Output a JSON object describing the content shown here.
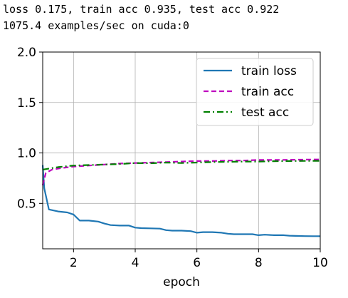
{
  "console": {
    "line1": "loss 0.175, train acc 0.935, test acc 0.922",
    "line2": "1075.4 examples/sec on cuda:0"
  },
  "chart_data": {
    "type": "line",
    "xlabel": "epoch",
    "ylabel": "",
    "xlim": [
      1,
      10
    ],
    "ylim": [
      0.05,
      2.0
    ],
    "xticks": [
      2,
      4,
      6,
      8,
      10
    ],
    "yticks": [
      0.5,
      1.0,
      1.5,
      2.0
    ],
    "xtick_labels": [
      "2",
      "4",
      "6",
      "8",
      "10"
    ],
    "ytick_labels": [
      "0.5",
      "1.0",
      "1.5",
      "2.0"
    ],
    "grid": true,
    "legend_position": "top-right",
    "series": [
      {
        "name": "train loss",
        "color": "#1f77b4",
        "style": "solid",
        "x": [
          1.0,
          1.05,
          1.2,
          1.5,
          1.8,
          2.0,
          2.2,
          2.5,
          2.8,
          3.0,
          3.2,
          3.5,
          3.8,
          4.0,
          4.2,
          4.5,
          4.8,
          5.0,
          5.2,
          5.5,
          5.8,
          6.0,
          6.2,
          6.5,
          6.8,
          7.0,
          7.2,
          7.5,
          7.8,
          8.0,
          8.2,
          8.5,
          8.8,
          9.0,
          9.2,
          9.5,
          9.8,
          10.0
        ],
        "y": [
          0.88,
          0.65,
          0.44,
          0.42,
          0.41,
          0.39,
          0.33,
          0.33,
          0.32,
          0.3,
          0.285,
          0.28,
          0.28,
          0.26,
          0.255,
          0.253,
          0.25,
          0.235,
          0.23,
          0.23,
          0.225,
          0.21,
          0.215,
          0.215,
          0.21,
          0.2,
          0.195,
          0.195,
          0.195,
          0.185,
          0.19,
          0.185,
          0.185,
          0.18,
          0.178,
          0.176,
          0.175,
          0.175
        ]
      },
      {
        "name": "train acc",
        "color": "#bf00bf",
        "style": "dashed",
        "x": [
          1.0,
          1.1,
          1.3,
          1.6,
          2.0,
          2.5,
          3.0,
          3.5,
          4.0,
          4.5,
          5.0,
          5.5,
          6.0,
          6.5,
          7.0,
          7.5,
          8.0,
          8.5,
          9.0,
          9.5,
          10.0
        ],
        "y": [
          0.68,
          0.8,
          0.835,
          0.85,
          0.865,
          0.875,
          0.885,
          0.895,
          0.9,
          0.905,
          0.91,
          0.915,
          0.92,
          0.92,
          0.925,
          0.925,
          0.93,
          0.93,
          0.932,
          0.934,
          0.935
        ]
      },
      {
        "name": "test acc",
        "color": "#008000",
        "style": "dashdot",
        "x": [
          1.0,
          1.5,
          2.0,
          2.5,
          3.0,
          3.5,
          4.0,
          4.5,
          5.0,
          5.5,
          6.0,
          6.5,
          7.0,
          7.5,
          8.0,
          8.5,
          9.0,
          9.5,
          10.0
        ],
        "y": [
          0.835,
          0.86,
          0.875,
          0.88,
          0.885,
          0.89,
          0.9,
          0.898,
          0.905,
          0.9,
          0.905,
          0.91,
          0.912,
          0.915,
          0.915,
          0.918,
          0.92,
          0.921,
          0.922
        ]
      }
    ]
  }
}
